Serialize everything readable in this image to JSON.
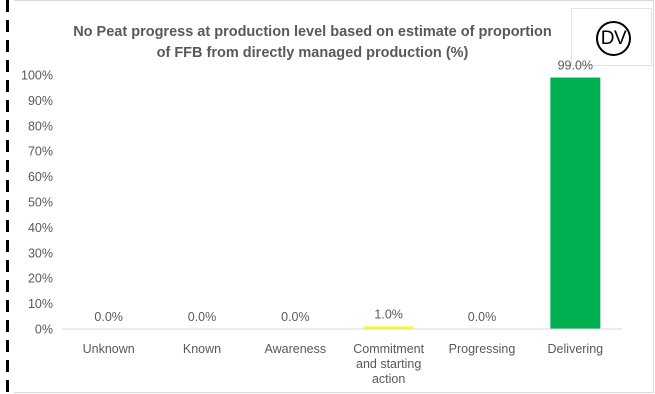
{
  "chart_data": {
    "type": "bar",
    "title_lines": [
      "No Peat progress at production level based on estimate of proportion",
      "of FFB from directly managed production (%)"
    ],
    "categories": [
      [
        "Unknown"
      ],
      [
        "Known"
      ],
      [
        "Awareness"
      ],
      [
        "Commitment",
        "and starting",
        "action"
      ],
      [
        "Progressing"
      ],
      [
        "Delivering"
      ]
    ],
    "values": [
      0.0,
      0.0,
      0.0,
      1.0,
      0.0,
      99.0
    ],
    "data_labels": [
      "0.0%",
      "0.0%",
      "0.0%",
      "1.0%",
      "0.0%",
      "99.0%"
    ],
    "bar_colors": [
      "#00b050",
      "#00b050",
      "#00b050",
      "#ffff00",
      "#00b050",
      "#00b050"
    ],
    "y_ticks": [
      "0%",
      "10%",
      "20%",
      "30%",
      "40%",
      "50%",
      "60%",
      "70%",
      "80%",
      "90%",
      "100%"
    ],
    "ylim": [
      0,
      100
    ],
    "grid": false,
    "legend": "none"
  },
  "logo": {
    "text": "DV"
  }
}
